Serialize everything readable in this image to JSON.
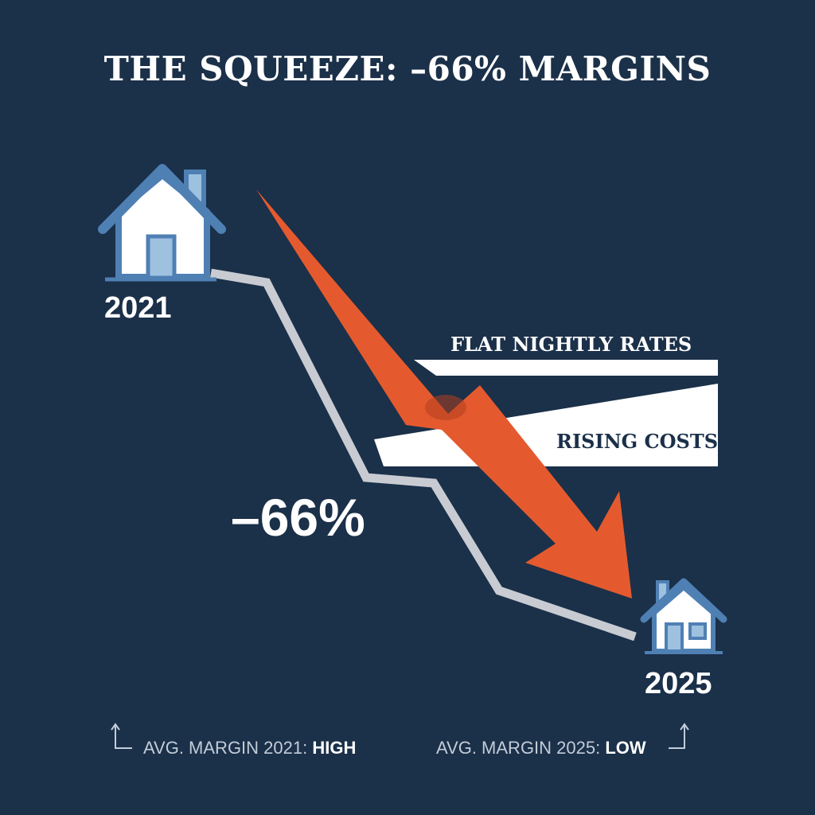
{
  "title": "THE SQUEEZE: –66% MARGINS",
  "start": {
    "year": "2021",
    "icon": "house-icon"
  },
  "end": {
    "year": "2025",
    "icon": "house-icon"
  },
  "change_label": "–66%",
  "bars": {
    "rates_label": "FLAT NIGHTLY RATES",
    "costs_label": "RISING COSTS"
  },
  "footer": {
    "left_prefix": "AVG. MARGIN 2021: ",
    "left_value": "HIGH",
    "right_prefix": "AVG. MARGIN 2025: ",
    "right_value": "LOW"
  },
  "colors": {
    "background": "#1b3049",
    "arrow": "#e45a2e",
    "line": "#c8ccd2",
    "house_stroke": "#4f80b4",
    "house_fill": "#ffffff",
    "door": "#9ec1e0"
  }
}
